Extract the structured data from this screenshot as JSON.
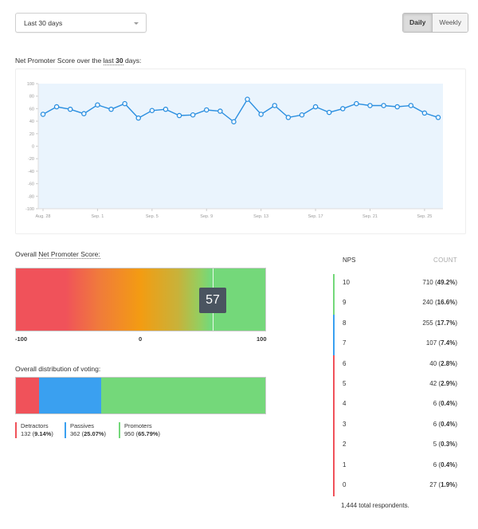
{
  "controls": {
    "range_select": "Last 30 days",
    "toggle_daily": "Daily",
    "toggle_weekly": "Weekly"
  },
  "line_section": {
    "title_pre": "Net Promoter Score over the ",
    "title_last": "last",
    "title_space": " ",
    "title_days_num": "30",
    "title_days_suffix": " days:"
  },
  "gauge": {
    "title_pre": "Overall ",
    "title_link": "Net Promoter Score:",
    "score": "57",
    "scale_min": "-100",
    "scale_mid": "0",
    "scale_max": "100"
  },
  "distribution": {
    "title": "Overall distribution of voting:",
    "segments": [
      {
        "label": "Detractors",
        "count": "132",
        "pct": "9.14%",
        "fraction": 0.0914,
        "color": "#f0525a"
      },
      {
        "label": "Passives",
        "count": "362",
        "pct": "25.07%",
        "fraction": 0.2507,
        "color": "#3aa0f0"
      },
      {
        "label": "Promoters",
        "count": "950",
        "pct": "65.79%",
        "fraction": 0.6579,
        "color": "#74d87a"
      }
    ]
  },
  "nps_table": {
    "col_score": "NPS",
    "col_count": "COUNT",
    "rows": [
      {
        "score": "10",
        "count": "710",
        "pct": "49.2%"
      },
      {
        "score": "9",
        "count": "240",
        "pct": "16.6%"
      },
      {
        "score": "8",
        "count": "255",
        "pct": "17.7%"
      },
      {
        "score": "7",
        "count": "107",
        "pct": "7.4%"
      },
      {
        "score": "6",
        "count": "40",
        "pct": "2.8%"
      },
      {
        "score": "5",
        "count": "42",
        "pct": "2.9%"
      },
      {
        "score": "4",
        "count": "6",
        "pct": "0.4%"
      },
      {
        "score": "3",
        "count": "6",
        "pct": "0.4%"
      },
      {
        "score": "2",
        "count": "5",
        "pct": "0.3%"
      },
      {
        "score": "1",
        "count": "6",
        "pct": "0.4%"
      },
      {
        "score": "0",
        "count": "27",
        "pct": "1.9%"
      }
    ],
    "total": "1,444 total respondents."
  },
  "colors": {
    "line": "#2b8fe0",
    "area": "#eaf4fd",
    "detractor": "#f0525a",
    "passive": "#3aa0f0",
    "promoter": "#74d87a"
  },
  "chart_data": {
    "type": "line",
    "x_tick_labels": [
      "Aug. 28",
      "Sep. 1",
      "Sep. 5",
      "Sep. 9",
      "Sep. 13",
      "Sep. 17",
      "Sep. 21",
      "Sep. 25"
    ],
    "x": [
      "Aug. 28",
      "Aug. 29",
      "Aug. 30",
      "Aug. 31",
      "Sep. 1",
      "Sep. 2",
      "Sep. 3",
      "Sep. 4",
      "Sep. 5",
      "Sep. 6",
      "Sep. 7",
      "Sep. 8",
      "Sep. 9",
      "Sep. 10",
      "Sep. 11",
      "Sep. 12",
      "Sep. 13",
      "Sep. 14",
      "Sep. 15",
      "Sep. 16",
      "Sep. 17",
      "Sep. 18",
      "Sep. 19",
      "Sep. 20",
      "Sep. 21",
      "Sep. 22",
      "Sep. 23",
      "Sep. 24",
      "Sep. 25",
      "Sep. 26"
    ],
    "values": [
      51,
      63,
      59,
      52,
      66,
      59,
      68,
      45,
      57,
      59,
      49,
      50,
      58,
      56,
      39,
      75,
      51,
      65,
      46,
      50,
      63,
      54,
      60,
      68,
      65,
      65,
      63,
      65,
      53,
      46
    ],
    "ylim": [
      -100,
      100
    ],
    "y_ticks": [
      -100,
      -80,
      -60,
      -40,
      -20,
      0,
      20,
      40,
      60,
      80,
      100
    ],
    "grid": false
  }
}
